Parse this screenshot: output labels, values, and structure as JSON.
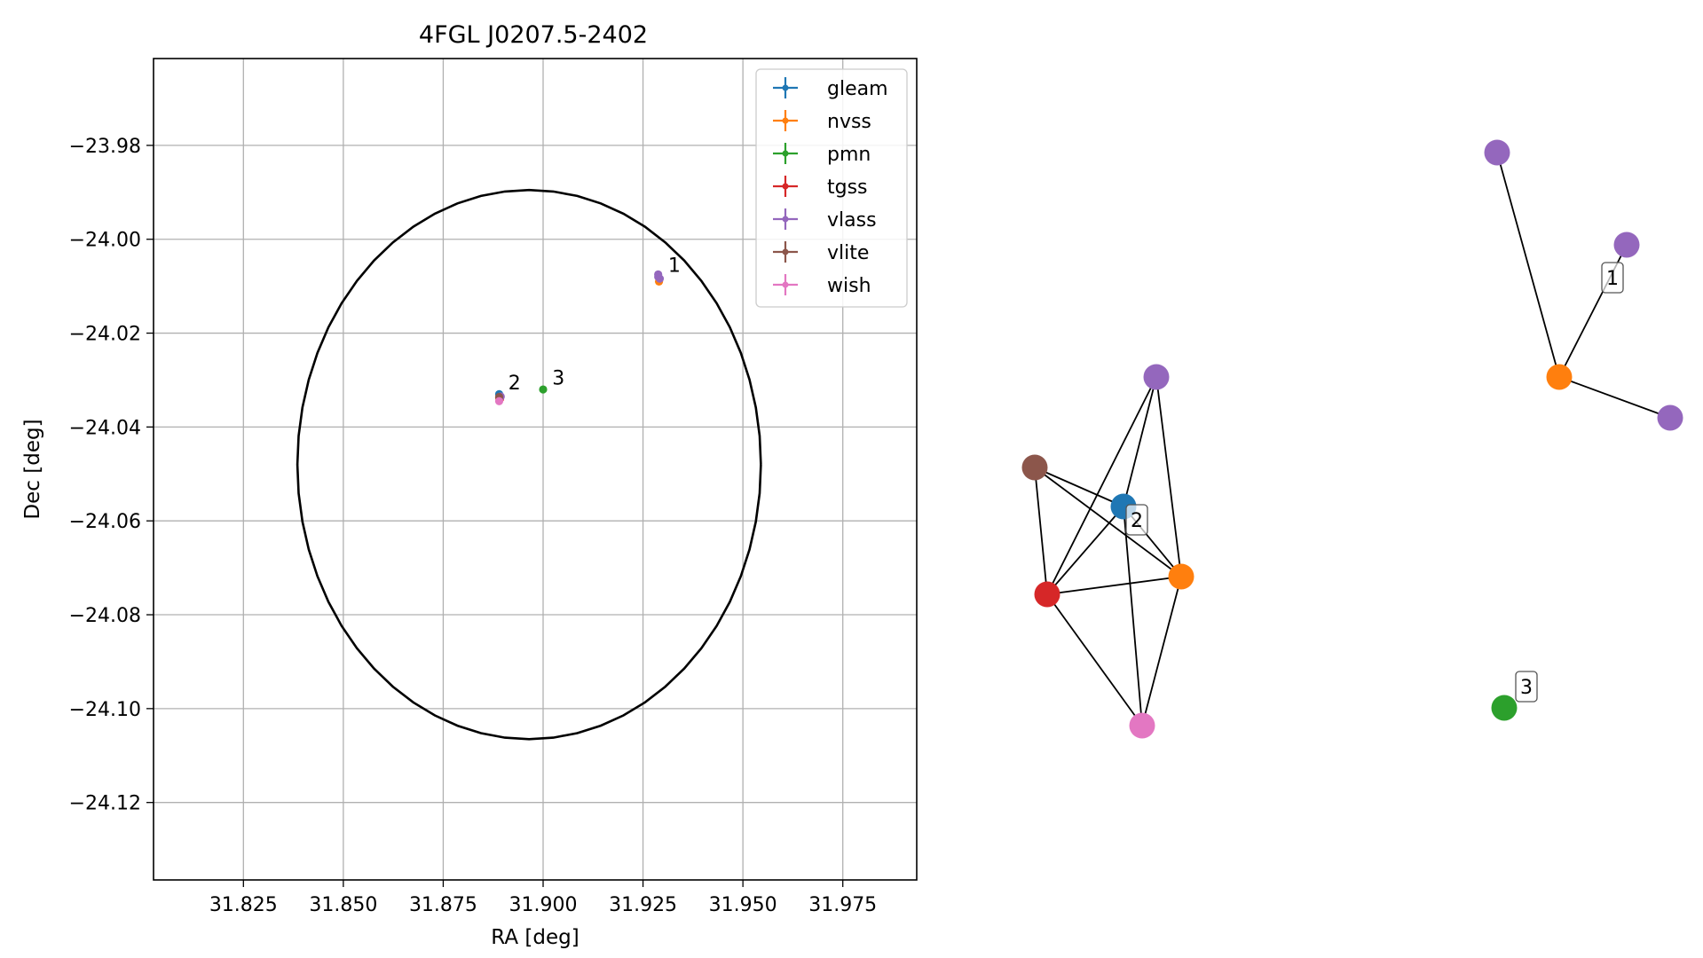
{
  "chart_data": [
    {
      "type": "scatter",
      "title": "4FGL J0207.5-2402",
      "xlabel": "RA [deg]",
      "ylabel": "Dec [deg]",
      "xlim": [
        31.8025,
        31.9935
      ],
      "ylim": [
        -24.1365,
        -23.9615
      ],
      "xticks": [
        31.825,
        31.85,
        31.875,
        31.9,
        31.925,
        31.95,
        31.975
      ],
      "xtick_labels": [
        "31.825",
        "31.850",
        "31.875",
        "31.900",
        "31.925",
        "31.950",
        "31.975"
      ],
      "yticks": [
        -23.98,
        -24.0,
        -24.02,
        -24.04,
        -24.06,
        -24.08,
        -24.1,
        -24.12
      ],
      "ytick_labels": [
        "−23.98",
        "−24.00",
        "−24.02",
        "−24.04",
        "−24.06",
        "−24.08",
        "−24.10",
        "−24.12"
      ],
      "grid": true,
      "legend_position": "top-right",
      "ellipse": {
        "center": [
          31.8965,
          -24.048
        ],
        "ra_half_width": 0.058,
        "dec_half_height": 0.0585,
        "color": "#000000"
      },
      "series": [
        {
          "name": "gleam",
          "color": "#1f77b4",
          "points": [
            [
              31.889,
              -24.033
            ]
          ]
        },
        {
          "name": "nvss",
          "color": "#ff7f0e",
          "points": [
            [
              31.929,
              -24.009
            ],
            [
              31.889,
              -24.0338
            ]
          ]
        },
        {
          "name": "pmn",
          "color": "#2ca02c",
          "points": [
            [
              31.9,
              -24.032
            ]
          ]
        },
        {
          "name": "tgss",
          "color": "#d62728",
          "points": [
            [
              31.8892,
              -24.034
            ]
          ]
        },
        {
          "name": "vlass",
          "color": "#9467bd",
          "points": [
            [
              31.9288,
              -24.0075
            ],
            [
              31.9288,
              -24.008
            ],
            [
              31.9292,
              -24.0084
            ],
            [
              31.8894,
              -24.0335
            ]
          ]
        },
        {
          "name": "vlite",
          "color": "#8c564b",
          "points": [
            [
              31.889,
              -24.0336
            ]
          ]
        },
        {
          "name": "wish",
          "color": "#e377c2",
          "points": [
            [
              31.889,
              -24.0345
            ]
          ]
        }
      ],
      "annotations": [
        {
          "text": "1",
          "x": 31.9295,
          "y": -24.0085
        },
        {
          "text": "2",
          "x": 31.8895,
          "y": -24.0335
        },
        {
          "text": "3",
          "x": 31.9005,
          "y": -24.0325
        }
      ]
    },
    {
      "type": "network",
      "nodes": [
        {
          "id": "c2_vlass",
          "catalog": "vlass",
          "color": "#9467bd"
        },
        {
          "id": "c2_vlite",
          "catalog": "vlite",
          "color": "#8c564b"
        },
        {
          "id": "c2_gleam",
          "catalog": "gleam",
          "color": "#1f77b4"
        },
        {
          "id": "c2_nvss",
          "catalog": "nvss",
          "color": "#ff7f0e"
        },
        {
          "id": "c2_tgss",
          "catalog": "tgss",
          "color": "#d62728"
        },
        {
          "id": "c2_wish",
          "catalog": "wish",
          "color": "#e377c2"
        },
        {
          "id": "c1_vlass_a",
          "catalog": "vlass",
          "color": "#9467bd"
        },
        {
          "id": "c1_vlass_b",
          "catalog": "vlass",
          "color": "#9467bd"
        },
        {
          "id": "c1_nvss",
          "catalog": "nvss",
          "color": "#ff7f0e"
        },
        {
          "id": "c1_vlass_c",
          "catalog": "vlass",
          "color": "#9467bd"
        },
        {
          "id": "c3_pmn",
          "catalog": "pmn",
          "color": "#2ca02c"
        }
      ],
      "edges": [
        [
          "c2_vlass",
          "c2_tgss"
        ],
        [
          "c2_vlass",
          "c2_gleam"
        ],
        [
          "c2_vlass",
          "c2_nvss"
        ],
        [
          "c2_vlite",
          "c2_gleam"
        ],
        [
          "c2_vlite",
          "c2_nvss"
        ],
        [
          "c2_vlite",
          "c2_tgss"
        ],
        [
          "c2_gleam",
          "c2_nvss"
        ],
        [
          "c2_gleam",
          "c2_tgss"
        ],
        [
          "c2_gleam",
          "c2_wish"
        ],
        [
          "c2_tgss",
          "c2_nvss"
        ],
        [
          "c2_tgss",
          "c2_wish"
        ],
        [
          "c2_nvss",
          "c2_wish"
        ],
        [
          "c1_vlass_a",
          "c1_nvss"
        ],
        [
          "c1_vlass_b",
          "c1_nvss"
        ],
        [
          "c1_nvss",
          "c1_vlass_c"
        ]
      ],
      "labels": [
        "1",
        "2",
        "3"
      ]
    }
  ]
}
